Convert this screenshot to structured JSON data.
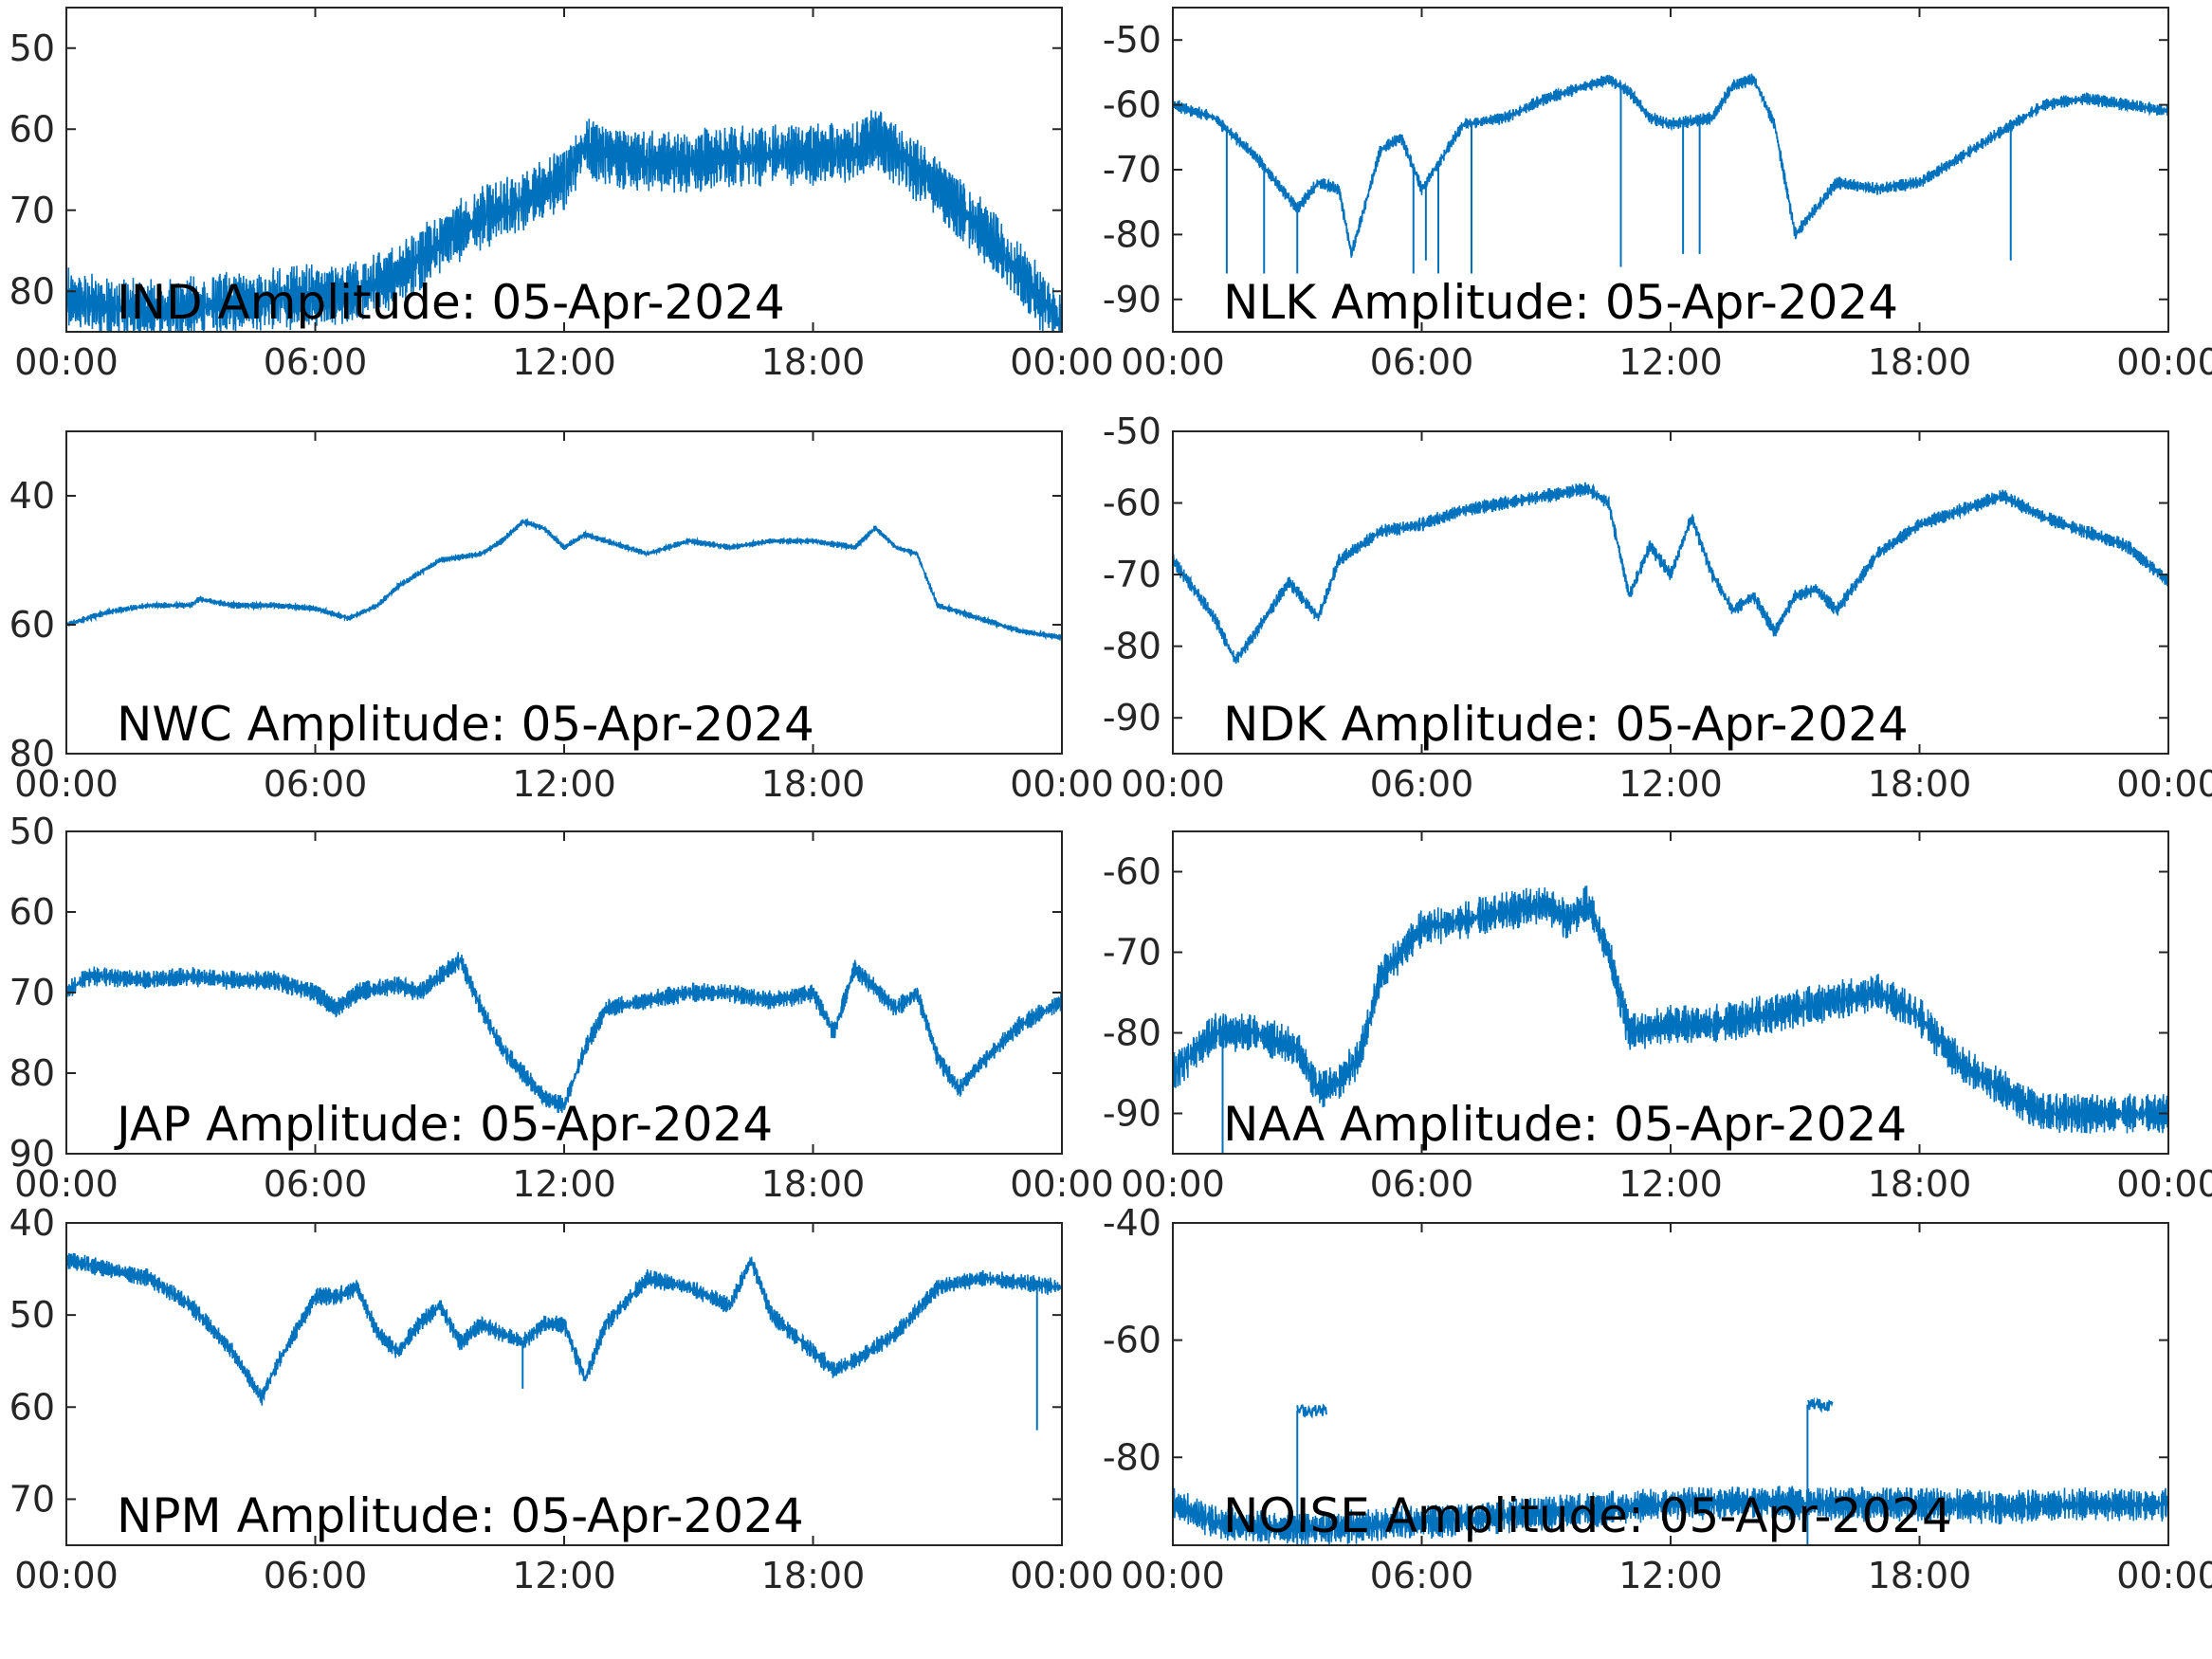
{
  "figure": {
    "line_color": "#0072BD",
    "axis_color": "#262626",
    "background": "#ffffff"
  },
  "chart_data": [
    {
      "type": "line",
      "title": "IND Amplitude: 05-Apr-2024",
      "x_ticks": [
        "00:00",
        "06:00",
        "12:00",
        "18:00",
        "00:00"
      ],
      "xlim_hours": [
        0,
        24
      ],
      "ylim": [
        -85,
        -45
      ],
      "y_ticks": [
        -50,
        -60,
        -70,
        -80
      ],
      "y_tick_labels": [
        "50",
        "60",
        "70",
        "80"
      ],
      "hours": [
        0,
        1,
        2,
        3,
        4,
        5,
        6,
        7,
        8,
        9,
        10,
        11,
        12,
        12.5,
        13,
        14,
        15,
        16,
        17,
        18,
        19,
        19.5,
        20,
        21,
        22,
        23,
        24
      ],
      "values": [
        -81,
        -82,
        -82.5,
        -82,
        -81.5,
        -81,
        -80.5,
        -80,
        -78,
        -74,
        -71,
        -69,
        -66,
        -62,
        -63,
        -64,
        -64,
        -63.5,
        -63,
        -63,
        -63,
        -61,
        -63,
        -67,
        -72,
        -78,
        -84
      ],
      "spread": 8,
      "spikes": []
    },
    {
      "type": "line",
      "title": "NLK Amplitude: 05-Apr-2024",
      "x_ticks": [
        "00:00",
        "06:00",
        "12:00",
        "18:00",
        "00:00"
      ],
      "xlim_hours": [
        0,
        24
      ],
      "ylim": [
        -95,
        -45
      ],
      "y_ticks": [
        -50,
        -60,
        -70,
        -80,
        -90
      ],
      "y_tick_labels": [
        "-50",
        "-60",
        "-70",
        "-80",
        "-90"
      ],
      "hours": [
        0,
        1,
        2,
        2.5,
        3,
        3.5,
        4,
        4.3,
        5,
        5.5,
        6,
        6.5,
        7,
        8,
        9,
        10,
        10.5,
        11,
        11.5,
        12,
        13,
        13.5,
        14,
        14.5,
        15,
        16,
        17,
        18,
        19,
        20,
        21,
        22,
        23,
        24
      ],
      "values": [
        -60,
        -62,
        -68,
        -72,
        -76,
        -72,
        -73,
        -83,
        -67,
        -65,
        -73,
        -68,
        -63,
        -62,
        -59,
        -57,
        -56,
        -58,
        -62,
        -63,
        -62,
        -57,
        -56,
        -63,
        -80,
        -72,
        -73,
        -72,
        -68,
        -64,
        -60,
        -59,
        -60,
        -61
      ],
      "spread": 2,
      "spikes": [
        {
          "hour": 1.3,
          "to": -86
        },
        {
          "hour": 2.2,
          "to": -86
        },
        {
          "hour": 3.0,
          "to": -86
        },
        {
          "hour": 5.8,
          "to": -86
        },
        {
          "hour": 6.1,
          "to": -84
        },
        {
          "hour": 6.4,
          "to": -86
        },
        {
          "hour": 7.2,
          "to": -86
        },
        {
          "hour": 10.8,
          "to": -85
        },
        {
          "hour": 12.3,
          "to": -83
        },
        {
          "hour": 12.7,
          "to": -83
        },
        {
          "hour": 20.2,
          "to": -84
        }
      ]
    },
    {
      "type": "line",
      "title": "NWC Amplitude: 05-Apr-2024",
      "x_ticks": [
        "00:00",
        "06:00",
        "12:00",
        "18:00",
        "00:00"
      ],
      "xlim_hours": [
        0,
        24
      ],
      "ylim": [
        -80,
        -30
      ],
      "y_ticks": [
        -40,
        -60,
        -80
      ],
      "y_tick_labels": [
        "40",
        "60",
        "80"
      ],
      "hours": [
        0,
        1,
        2,
        3,
        3.2,
        4,
        5,
        6,
        6.8,
        7.5,
        8,
        9,
        10,
        10.5,
        11,
        11.5,
        12,
        12.5,
        13,
        14,
        15,
        16,
        17,
        18,
        19,
        19.5,
        20,
        20.5,
        21,
        22,
        23,
        24
      ],
      "values": [
        -60,
        -58,
        -57,
        -57,
        -56,
        -57,
        -57,
        -57.5,
        -59,
        -57,
        -54,
        -50,
        -49,
        -47,
        -44,
        -45,
        -48,
        -46,
        -47,
        -49,
        -47,
        -48,
        -47,
        -47,
        -48,
        -45,
        -48,
        -49,
        -57,
        -59,
        -61,
        -62
      ],
      "spread": 1,
      "spikes": []
    },
    {
      "type": "line",
      "title": "NDK Amplitude: 05-Apr-2024",
      "x_ticks": [
        "00:00",
        "06:00",
        "12:00",
        "18:00",
        "00:00"
      ],
      "xlim_hours": [
        0,
        24
      ],
      "ylim": [
        -95,
        -50
      ],
      "y_ticks": [
        -50,
        -60,
        -70,
        -80,
        -90
      ],
      "y_tick_labels": [
        "-50",
        "-60",
        "-70",
        "-80",
        "-90"
      ],
      "hours": [
        0,
        1,
        1.5,
        2,
        2.8,
        3.5,
        4,
        5,
        6,
        7,
        8,
        9,
        10,
        10.5,
        11,
        11.5,
        12,
        12.5,
        13,
        13.5,
        14,
        14.5,
        15,
        15.5,
        16,
        17,
        18,
        19,
        20,
        21,
        22,
        23,
        24
      ],
      "values": [
        -68,
        -76,
        -82,
        -78,
        -71,
        -76,
        -68,
        -64,
        -63,
        -61,
        -60,
        -59,
        -58,
        -60,
        -73,
        -66,
        -70,
        -62,
        -70,
        -75,
        -73,
        -78,
        -73,
        -72,
        -75,
        -67,
        -63,
        -61,
        -59,
        -62,
        -64,
        -66,
        -71
      ],
      "spread": 2,
      "spikes": []
    },
    {
      "type": "line",
      "title": "JAP Amplitude: 05-Apr-2024",
      "x_ticks": [
        "00:00",
        "06:00",
        "12:00",
        "18:00",
        "00:00"
      ],
      "xlim_hours": [
        0,
        24
      ],
      "ylim": [
        -90,
        -50
      ],
      "y_ticks": [
        -50,
        -60,
        -70,
        -80,
        -90
      ],
      "y_tick_labels": [
        "50",
        "60",
        "70",
        "80",
        "90"
      ],
      "hours": [
        0,
        0.5,
        1,
        2,
        3,
        4,
        5,
        6,
        6.5,
        7,
        8,
        8.5,
        9,
        9.5,
        10,
        10.5,
        11,
        11.5,
        12,
        12.5,
        13,
        14,
        15,
        16,
        17,
        18,
        18.5,
        19,
        20,
        20.5,
        21,
        21.5,
        22,
        23,
        24
      ],
      "values": [
        -70,
        -68,
        -68,
        -68.5,
        -68,
        -68.5,
        -68.5,
        -70,
        -72,
        -70,
        -69,
        -70,
        -68,
        -66,
        -72,
        -77,
        -80,
        -83,
        -84,
        -77,
        -72,
        -71,
        -70,
        -70,
        -71,
        -70,
        -75,
        -67,
        -72,
        -70,
        -78,
        -82,
        -79,
        -74,
        -71
      ],
      "spread": 2.5,
      "spikes": []
    },
    {
      "type": "line",
      "title": "NAA Amplitude: 05-Apr-2024",
      "x_ticks": [
        "00:00",
        "06:00",
        "12:00",
        "18:00",
        "00:00"
      ],
      "xlim_hours": [
        0,
        24
      ],
      "ylim": [
        -95,
        -55
      ],
      "y_ticks": [
        -60,
        -70,
        -80,
        -90
      ],
      "y_tick_labels": [
        "-60",
        "-70",
        "-80",
        "-90"
      ],
      "hours": [
        0,
        1,
        2,
        3,
        3.5,
        4,
        4.5,
        5,
        6,
        7,
        8,
        9,
        9.5,
        10,
        10.5,
        11,
        12,
        13,
        14,
        15,
        16,
        17,
        18,
        19,
        20,
        21,
        22,
        23,
        24
      ],
      "values": [
        -85,
        -80,
        -80,
        -82,
        -87,
        -86,
        -83,
        -73,
        -67,
        -66,
        -65,
        -64,
        -66,
        -64,
        -70,
        -80,
        -79,
        -79,
        -78,
        -77,
        -76,
        -75,
        -78,
        -84,
        -87,
        -90,
        -90,
        -90,
        -90
      ],
      "spread": 5,
      "spikes": [
        {
          "hour": 1.2,
          "to": -95
        }
      ]
    },
    {
      "type": "line",
      "title": "NPM Amplitude: 05-Apr-2024",
      "x_ticks": [
        "00:00",
        "06:00",
        "12:00",
        "18:00",
        "00:00"
      ],
      "xlim_hours": [
        0,
        24
      ],
      "ylim": [
        -75,
        -40
      ],
      "y_ticks": [
        -40,
        -50,
        -60,
        -70
      ],
      "y_tick_labels": [
        "40",
        "50",
        "60",
        "70"
      ],
      "hours": [
        0,
        1,
        2,
        3,
        4,
        4.7,
        5,
        6,
        6.5,
        7,
        7.5,
        8,
        8.5,
        9,
        9.5,
        10,
        11,
        11.5,
        12,
        12.5,
        13,
        14,
        15,
        16,
        16.5,
        17,
        18,
        18.5,
        19,
        20,
        21,
        22,
        23,
        24
      ],
      "values": [
        -44,
        -45,
        -46,
        -49,
        -54,
        -59,
        -56,
        -48,
        -48,
        -47,
        -52,
        -54,
        -51,
        -49,
        -53,
        -51,
        -53,
        -51,
        -51,
        -57,
        -51,
        -46,
        -47,
        -49,
        -44,
        -50,
        -54,
        -56,
        -55,
        -52,
        -47,
        -46,
        -46.5,
        -47
      ],
      "spread": 2,
      "spikes": [
        {
          "hour": 11,
          "to": -58
        },
        {
          "hour": 23.4,
          "to": -62.5
        }
      ]
    },
    {
      "type": "line",
      "title": "NOISE Amplitude: 05-Apr-2024",
      "x_ticks": [
        "00:00",
        "06:00",
        "12:00",
        "18:00",
        "00:00"
      ],
      "xlim_hours": [
        0,
        24
      ],
      "ylim": [
        -95,
        -40
      ],
      "y_ticks": [
        -40,
        -60,
        -80
      ],
      "y_tick_labels": [
        "-40",
        "-60",
        "-80"
      ],
      "hours": [
        0,
        1,
        2,
        3,
        4,
        6,
        8,
        10,
        12,
        14,
        16,
        18,
        20,
        22,
        24
      ],
      "values": [
        -88,
        -91,
        -92,
        -92,
        -92,
        -91,
        -90,
        -89,
        -88,
        -87.5,
        -88,
        -88,
        -88.5,
        -88,
        -88
      ],
      "spread": 6,
      "spikes": [],
      "segments": [
        {
          "from_hour": 3.0,
          "to_hour": 3.7,
          "level": -72
        },
        {
          "from_hour": 15.3,
          "to_hour": 15.9,
          "level": -71
        }
      ]
    }
  ]
}
